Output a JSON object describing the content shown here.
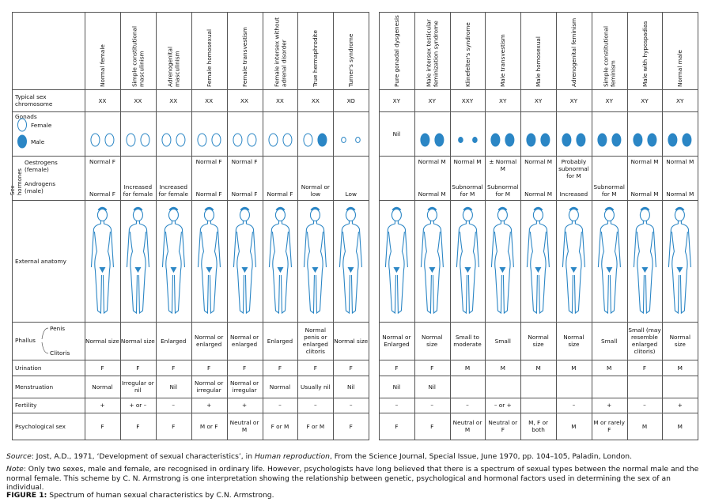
{
  "row_labels": {
    "chromosome": "Typical sex chromosome",
    "gonads": "Gonads",
    "female": "Female",
    "male": "Male",
    "hormones": "Sex hormones",
    "oestrogens": "Oestrogens (female)",
    "androgens": "Androgens (male)",
    "anatomy": "External anatomy",
    "phallus": "Phallus",
    "penis": "Penis",
    "clitoris": "Clitoris",
    "urination": "Urination",
    "menstruation": "Menstruation",
    "fertility": "Fertility",
    "psych": "Psychological sex"
  },
  "left_table": {
    "columns": [
      {
        "name": "Normal female",
        "chromosome": "XX",
        "gonads": [
          "female",
          "female"
        ],
        "oestrogens": "Normal F",
        "androgens": "Normal F",
        "phallus": "Normal size",
        "urination": "F",
        "menstruation": "Normal",
        "fertility": "+",
        "psych": "F"
      },
      {
        "name": "Simple constitutional masculinism",
        "chromosome": "XX",
        "gonads": [
          "female",
          "female"
        ],
        "androgens": "Increased for female",
        "phallus": "Normal size",
        "urination": "F",
        "menstruation": "Irregular or nil",
        "fertility": "+ or –",
        "psych": "F"
      },
      {
        "name": "Adrenogenital masculinism",
        "chromosome": "XX",
        "gonads": [
          "female",
          "female"
        ],
        "androgens": "Increased for female",
        "phallus": "Enlarged",
        "urination": "F",
        "menstruation": "Nil",
        "fertility": "–",
        "psych": "F"
      },
      {
        "name": "Female homosexual",
        "chromosome": "XX",
        "gonads": [
          "female",
          "female"
        ],
        "oestrogens": "Normal F",
        "androgens": "Normal F",
        "phallus": "Normal or enlarged",
        "urination": "F",
        "menstruation": "Normal or irregular",
        "fertility": "+",
        "psych": "M or F"
      },
      {
        "name": "Female transvestism",
        "chromosome": "XX",
        "gonads": [
          "female",
          "female"
        ],
        "oestrogens": "Normal F",
        "androgens": "Normal F",
        "phallus": "Normal or enlarged",
        "urination": "F",
        "menstruation": "Normal or irregular",
        "fertility": "+",
        "psych": "Neutral or M"
      },
      {
        "name": "Female intersex without adrenal disorder",
        "chromosome": "XX",
        "gonads": [
          "female",
          "female"
        ],
        "androgens": "Normal F",
        "phallus": "Enlarged",
        "urination": "F",
        "menstruation": "Normal",
        "fertility": "–",
        "psych": "F or M"
      },
      {
        "name": "True hermaphrodite",
        "chromosome": "XX",
        "gonads": [
          "female",
          "male"
        ],
        "androgens": "Normal or low",
        "phallus": "Normal penis or enlarged clitoris",
        "urination": "F",
        "menstruation": "Usually nil",
        "fertility": "–",
        "psych": "F or M"
      },
      {
        "name": "Turner's syndrome",
        "chromosome": "XO",
        "gonads": [
          "female",
          "female"
        ],
        "small": true,
        "androgens": "Low",
        "phallus": "Normal size",
        "urination": "F",
        "menstruation": "Nil",
        "fertility": "–",
        "psych": "F"
      }
    ]
  },
  "right_table": {
    "columns": [
      {
        "name": "Pure gonadal dysgenesis",
        "chromosome": "XY",
        "gonads": [],
        "gonads_label": "Nil",
        "phallus": "Normal or Enlarged",
        "urination": "F",
        "menstruation": "Nil",
        "fertility": "–",
        "psych": "F"
      },
      {
        "name": "Male intersex testicular feminization syndrome",
        "chromosome": "XY",
        "gonads": [
          "male",
          "male"
        ],
        "oestrogens": "Normal M",
        "androgens": "Normal M",
        "phallus": "Normal size",
        "urination": "F",
        "menstruation": "Nil",
        "fertility": "–",
        "psych": "F"
      },
      {
        "name": "Klinefelter's syndrome",
        "chromosome": "XXY",
        "gonads": [
          "male",
          "male"
        ],
        "small": true,
        "oestrogens": "Normal M",
        "androgens": "Subnormal for M",
        "phallus": "Small to moderate",
        "urination": "M",
        "fertility": "–",
        "psych": "Neutral or M"
      },
      {
        "name": "Male transvestism",
        "chromosome": "XY",
        "gonads": [
          "male",
          "male"
        ],
        "oestrogens": "± Normal M",
        "androgens": "Subnormal for M",
        "phallus": "Small",
        "urination": "M",
        "fertility": "– or +",
        "psych": "Neutral or F"
      },
      {
        "name": "Male homosexual",
        "chromosome": "XY",
        "gonads": [
          "male",
          "male"
        ],
        "oestrogens": "Normal M",
        "androgens": "Normal M",
        "phallus": "Normal size",
        "urination": "M",
        "psych": "M, F or both"
      },
      {
        "name": "Adrenogenital feminism",
        "chromosome": "XY",
        "gonads": [
          "male",
          "male"
        ],
        "oestrogens": "Probably subnormal for M",
        "androgens": "Increased",
        "phallus": "Normal size",
        "urination": "M",
        "fertility": "–",
        "psych": "M"
      },
      {
        "name": "Simple constitutional feminism",
        "chromosome": "XY",
        "gonads": [
          "male",
          "male"
        ],
        "androgens": "Subnormal for M",
        "phallus": "Small",
        "urination": "M",
        "fertility": "+",
        "psych": "M or rarely F"
      },
      {
        "name": "Male with hypospadias",
        "chromosome": "XY",
        "gonads": [
          "male",
          "male"
        ],
        "oestrogens": "Normal M",
        "androgens": "Normal M",
        "phallus": "Small (may resemble enlarged clitoris)",
        "urination": "F",
        "fertility": "–",
        "psych": "M"
      },
      {
        "name": "Normal male",
        "chromosome": "XY",
        "gonads": [
          "male",
          "male"
        ],
        "oestrogens": "Normal M",
        "androgens": "Normal M",
        "phallus": "Normal size",
        "urination": "M",
        "fertility": "+",
        "psych": "M"
      }
    ]
  },
  "caption": {
    "source_label": "Source",
    "source_a": ": Jost, A.D., 1971, ‘Development of sexual characteristics’, in ",
    "source_italic": "Human reproduction",
    "source_b": ", From the Science Journal, Special Issue, June 1970, pp. 104–105, Paladin, London.",
    "note_label": "Note",
    "note_text": ": Only two sexes, male and female, are recognised in ordinary life. However, psychologists have long believed that there is a spectrum of sexual types between the normal male and the normal female. This scheme by C. N. Armstrong is one interpretation showing the relationship between genetic, psychological and hormonal factors used in determining the sex of an individual.",
    "figure_label": "FIGURE 1:",
    "figure_text": " Spectrum of human sexual characteristics by C.N. Armstrong."
  }
}
